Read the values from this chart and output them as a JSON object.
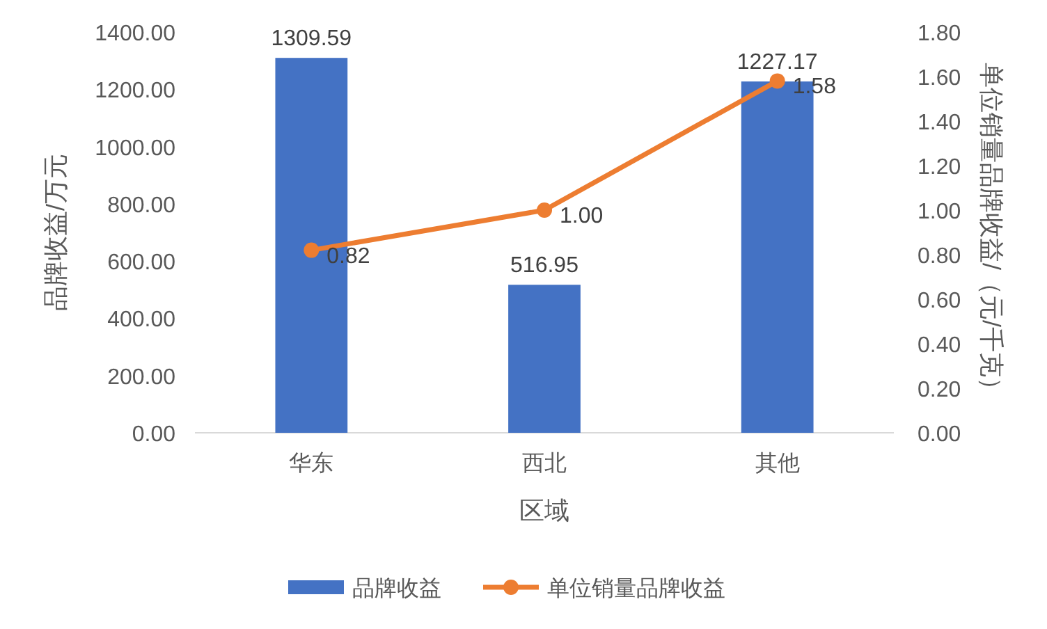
{
  "chart_data": {
    "type": "bar",
    "xlabel": "区域",
    "ylabel": "品牌收益/万元",
    "y2label": "单位销量品牌收益/（元/千克）",
    "categories": [
      "华东",
      "西北",
      "其他"
    ],
    "series": [
      {
        "name": "品牌收益",
        "color": "#4472c4",
        "values": [
          1309.59,
          516.95,
          1227.17
        ],
        "value_labels": [
          "1309.59",
          "516.95",
          "1227.17"
        ]
      },
      {
        "name": "单位销量品牌收益",
        "type": "line",
        "axis": "y2",
        "color": "#ed7d31",
        "values": [
          0.82,
          1.0,
          1.58
        ],
        "value_labels": [
          "0.82",
          "1.00",
          "1.58"
        ]
      }
    ],
    "ylim": [
      0,
      1400
    ],
    "yticks": [
      {
        "value": 0,
        "label": "0.00"
      },
      {
        "value": 200,
        "label": "200.00"
      },
      {
        "value": 400,
        "label": "400.00"
      },
      {
        "value": 600,
        "label": "600.00"
      },
      {
        "value": 800,
        "label": "800.00"
      },
      {
        "value": 1000,
        "label": "1000.00"
      },
      {
        "value": 1200,
        "label": "1200.00"
      },
      {
        "value": 1400,
        "label": "1400.00"
      }
    ],
    "y2lim": [
      0,
      1.8
    ],
    "y2ticks": [
      {
        "value": 0,
        "label": "0.00"
      },
      {
        "value": 0.2,
        "label": "0.20"
      },
      {
        "value": 0.4,
        "label": "0.40"
      },
      {
        "value": 0.6,
        "label": "0.60"
      },
      {
        "value": 0.8,
        "label": "0.80"
      },
      {
        "value": 1.0,
        "label": "1.00"
      },
      {
        "value": 1.2,
        "label": "1.20"
      },
      {
        "value": 1.4,
        "label": "1.40"
      },
      {
        "value": 1.6,
        "label": "1.60"
      },
      {
        "value": 1.8,
        "label": "1.80"
      }
    ],
    "legend": "bottom",
    "marker": "circle",
    "line_style": "solid"
  }
}
